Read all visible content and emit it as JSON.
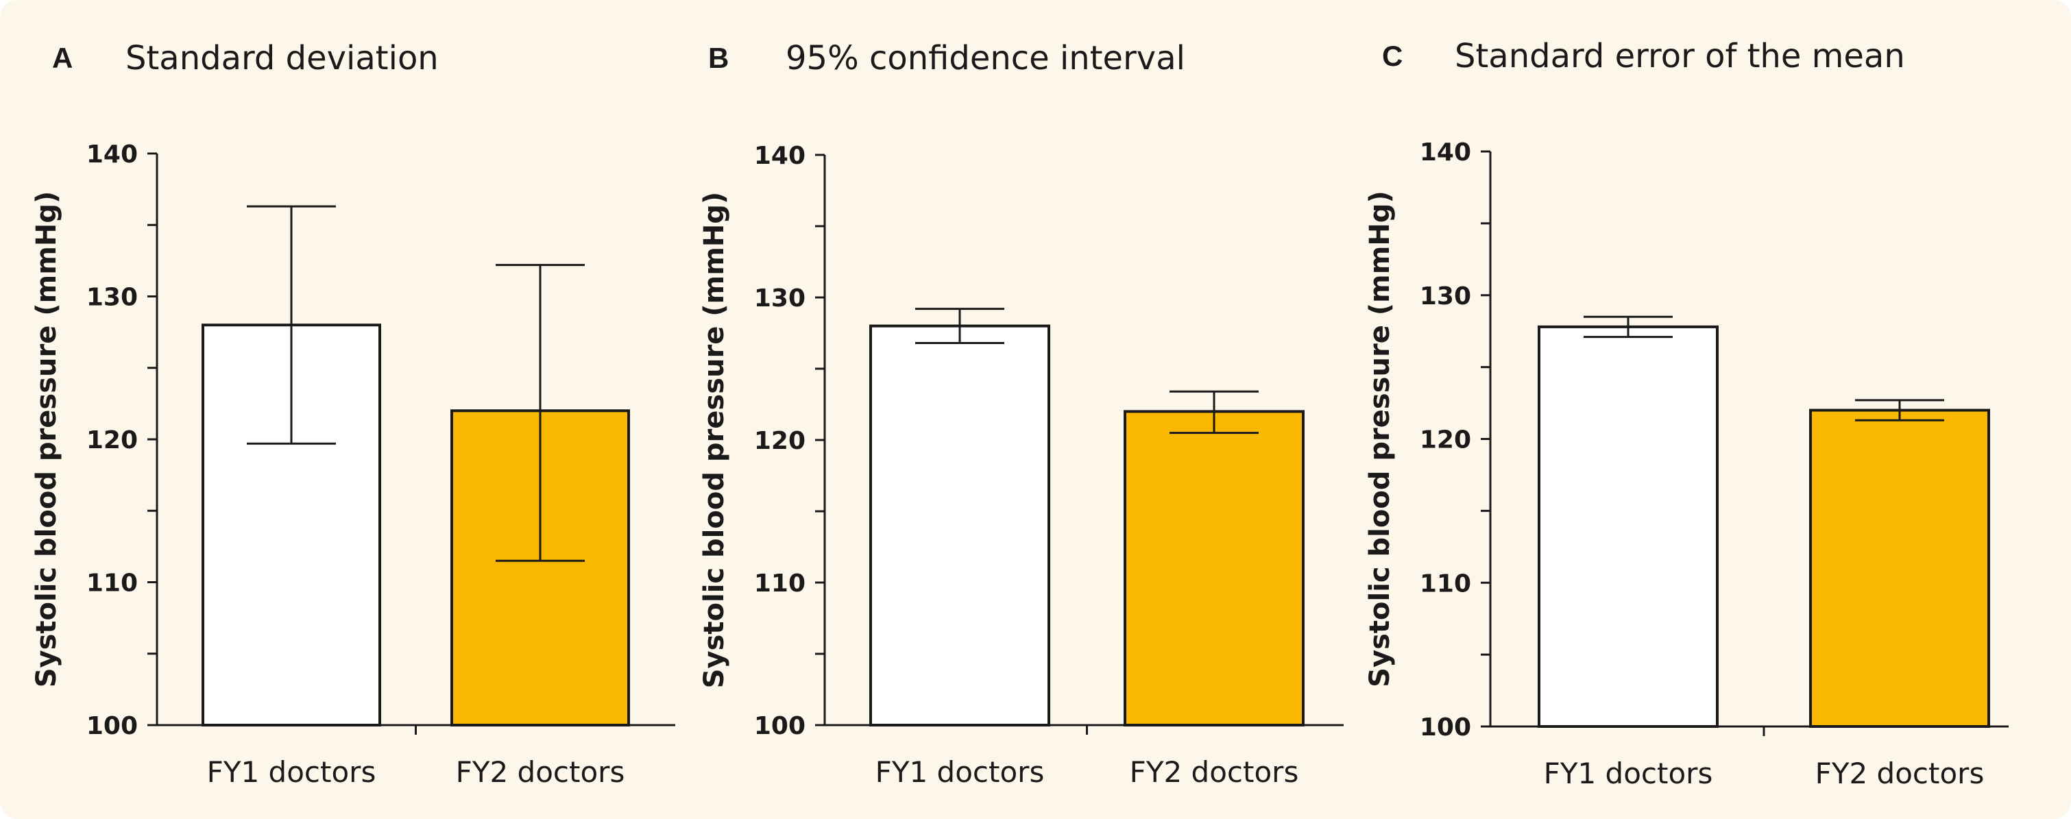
{
  "chart_data": [
    {
      "type": "bar",
      "panel": "A",
      "title": "Standard deviation",
      "ylabel": "Systolic blood pressure (mmHg)",
      "categories": [
        "FY1 doctors",
        "FY2 doctors"
      ],
      "values": [
        128,
        122
      ],
      "error_low": [
        119.7,
        111.5
      ],
      "error_high": [
        136.3,
        132.2
      ],
      "ylim": [
        100,
        140
      ],
      "yticks": [
        100,
        110,
        120,
        130,
        140
      ],
      "colors": [
        "#ffffff",
        "#fbb800"
      ]
    },
    {
      "type": "bar",
      "panel": "B",
      "title": "95% confidence interval",
      "ylabel": "Systolic blood pressure (mmHg)",
      "categories": [
        "FY1 doctors",
        "FY2 doctors"
      ],
      "values": [
        128,
        122
      ],
      "error_low": [
        126.8,
        120.5
      ],
      "error_high": [
        129.2,
        123.4
      ],
      "ylim": [
        100,
        140
      ],
      "yticks": [
        100,
        110,
        120,
        130,
        140
      ],
      "colors": [
        "#ffffff",
        "#fbb800"
      ]
    },
    {
      "type": "bar",
      "panel": "C",
      "title": "Standard error of the mean",
      "ylabel": "Systolic blood pressure (mmHg)",
      "categories": [
        "FY1 doctors",
        "FY2 doctors"
      ],
      "values": [
        127.8,
        122
      ],
      "error_low": [
        127.1,
        121.3
      ],
      "error_high": [
        128.5,
        122.7
      ],
      "ylim": [
        100,
        140
      ],
      "yticks": [
        100,
        110,
        120,
        130,
        140
      ],
      "colors": [
        "#ffffff",
        "#fbb800"
      ]
    }
  ]
}
